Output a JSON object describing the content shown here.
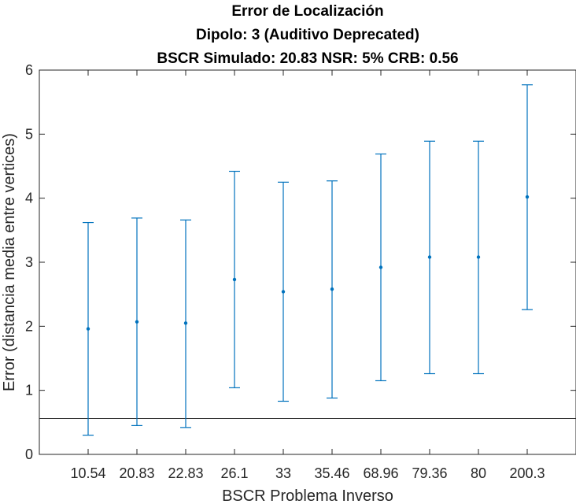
{
  "chart_data": {
    "type": "scatter",
    "title_lines": [
      "Error de Localización",
      "Dipolo: 3 (Auditivo Deprecated)",
      "BSCR Simulado: 20.83 NSR: 5% CRB: 0.56"
    ],
    "xlabel": "BSCR Problema Inverso",
    "ylabel": "Error (distancia media entre vertices)",
    "categories": [
      "10.54",
      "20.83",
      "22.83",
      "26.1",
      "33",
      "35.46",
      "68.96",
      "79.36",
      "80",
      "200.3"
    ],
    "series": [
      {
        "values": [
          1.96,
          2.07,
          2.05,
          2.73,
          2.54,
          2.58,
          2.92,
          3.08,
          3.08,
          4.02
        ],
        "lower": [
          0.3,
          0.45,
          0.42,
          1.04,
          0.83,
          0.88,
          1.15,
          1.26,
          1.26,
          2.26
        ],
        "upper": [
          3.62,
          3.69,
          3.66,
          4.42,
          4.25,
          4.27,
          4.69,
          4.89,
          4.89,
          5.77
        ]
      }
    ],
    "reference_line": {
      "y": 0.56
    },
    "ylim": [
      0,
      6
    ],
    "yticks": [
      0,
      1,
      2,
      3,
      4,
      5,
      6
    ],
    "grid": false,
    "colors": {
      "series": "#0072BD",
      "reference": "#262626",
      "axes": "#262626"
    }
  }
}
